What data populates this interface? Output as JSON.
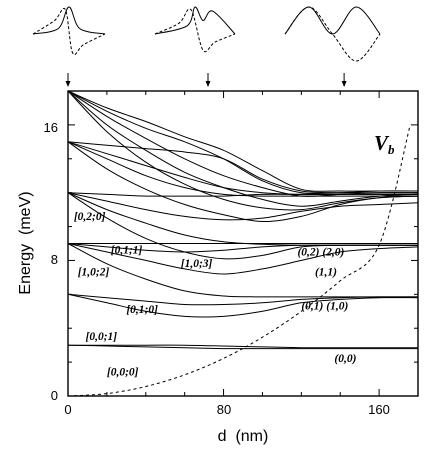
{
  "chart_data": {
    "type": "line",
    "xlabel": "d  (nm)",
    "ylabel": "Energy  (meV)",
    "xlim": [
      0,
      180
    ],
    "ylim": [
      0,
      18
    ],
    "xticks": [
      0,
      80,
      160
    ],
    "yticks": [
      0,
      8,
      16
    ],
    "xtick_labels": [
      "0",
      "80",
      "160"
    ],
    "ytick_labels": [
      "0",
      "8",
      "16"
    ],
    "grid": false,
    "legend": "none",
    "series": [
      {
        "x": [
          0,
          20,
          40,
          60,
          80,
          100,
          120,
          140,
          160,
          180
        ],
        "values": [
          3.0,
          2.95,
          2.9,
          2.85,
          2.8,
          2.8,
          2.8,
          2.8,
          2.8,
          2.8
        ]
      },
      {
        "x": [
          0,
          20,
          40,
          60,
          80,
          100,
          120,
          140,
          160,
          180
        ],
        "values": [
          3.0,
          3.0,
          3.0,
          3.0,
          2.95,
          2.9,
          2.85,
          2.85,
          2.85,
          2.85
        ]
      },
      {
        "x": [
          0,
          20,
          40,
          60,
          80,
          100,
          120,
          140,
          160,
          180
        ],
        "values": [
          6.0,
          5.5,
          5.0,
          4.7,
          4.7,
          5.0,
          5.5,
          5.7,
          5.8,
          5.8
        ]
      },
      {
        "x": [
          0,
          20,
          40,
          60,
          80,
          100,
          120,
          140,
          160,
          180
        ],
        "values": [
          6.0,
          5.8,
          5.6,
          5.4,
          5.4,
          5.5,
          5.7,
          5.8,
          5.85,
          5.85
        ]
      },
      {
        "x": [
          0,
          20,
          40,
          60,
          80,
          100,
          120,
          140,
          160,
          180
        ],
        "values": [
          9.0,
          7.8,
          6.9,
          6.2,
          5.9,
          5.85,
          5.85,
          5.85,
          5.85,
          5.85
        ]
      },
      {
        "x": [
          0,
          20,
          40,
          60,
          80,
          100,
          120,
          140,
          160,
          180
        ],
        "values": [
          9.0,
          8.5,
          8.0,
          7.5,
          7.2,
          7.5,
          8.0,
          8.5,
          8.7,
          8.8
        ]
      },
      {
        "x": [
          0,
          20,
          40,
          60,
          80,
          100,
          120,
          140,
          160,
          180
        ],
        "values": [
          9.0,
          8.8,
          8.6,
          8.5,
          8.6,
          8.8,
          8.9,
          8.9,
          8.9,
          8.9
        ]
      },
      {
        "x": [
          0,
          20,
          40,
          60,
          80,
          100,
          120,
          140,
          160,
          180
        ],
        "values": [
          9.0,
          9.0,
          9.0,
          9.0,
          9.0,
          9.0,
          9.0,
          9.0,
          9.0,
          9.0
        ]
      },
      {
        "x": [
          0,
          20,
          40,
          60,
          80,
          100,
          120,
          140,
          160,
          180
        ],
        "values": [
          12.0,
          11.0,
          10.2,
          9.5,
          9.1,
          8.95,
          8.9,
          8.9,
          8.9,
          8.9
        ]
      },
      {
        "x": [
          0,
          20,
          40,
          60,
          80,
          100,
          120,
          140,
          160,
          180
        ],
        "values": [
          12.0,
          10.5,
          9.3,
          8.5,
          8.1,
          8.3,
          8.8,
          8.9,
          8.9,
          8.9
        ]
      },
      {
        "x": [
          0,
          20,
          40,
          60,
          80,
          100,
          120,
          140,
          160,
          180
        ],
        "values": [
          12.0,
          11.5,
          11.0,
          10.6,
          10.4,
          10.5,
          10.9,
          11.2,
          11.3,
          11.4
        ]
      },
      {
        "x": [
          0,
          20,
          40,
          60,
          80,
          100,
          120,
          140,
          160,
          180
        ],
        "values": [
          12.0,
          11.9,
          11.8,
          11.8,
          11.8,
          11.9,
          11.9,
          11.9,
          11.9,
          11.9
        ]
      },
      {
        "x": [
          0,
          20,
          40,
          60,
          80,
          100,
          120,
          140,
          160,
          180
        ],
        "values": [
          15.0,
          13.4,
          12.2,
          11.3,
          10.7,
          10.3,
          10.6,
          11.3,
          11.7,
          11.8
        ]
      },
      {
        "x": [
          0,
          20,
          40,
          60,
          80,
          100,
          120,
          140,
          160,
          180
        ],
        "values": [
          15.0,
          14.0,
          13.0,
          12.3,
          11.9,
          11.8,
          11.8,
          11.8,
          11.8,
          11.8
        ]
      },
      {
        "x": [
          0,
          20,
          40,
          60,
          80,
          100,
          120,
          140,
          160,
          180
        ],
        "values": [
          15.0,
          14.3,
          13.6,
          12.9,
          12.3,
          12.0,
          11.9,
          11.9,
          11.9,
          11.9
        ]
      },
      {
        "x": [
          0,
          20,
          40,
          60,
          80,
          100,
          120,
          140,
          160,
          180
        ],
        "values": [
          15.0,
          14.8,
          14.6,
          14.4,
          14.0,
          12.8,
          12.1,
          12.0,
          12.0,
          12.0
        ]
      },
      {
        "x": [
          0,
          20,
          40,
          60,
          80,
          100,
          120,
          140,
          160,
          180
        ],
        "values": [
          18.0,
          15.6,
          13.8,
          12.5,
          11.6,
          11.1,
          11.0,
          11.4,
          11.7,
          11.8
        ]
      },
      {
        "x": [
          0,
          20,
          40,
          60,
          80,
          100,
          120,
          140,
          160,
          180
        ],
        "values": [
          18.0,
          16.0,
          14.5,
          13.2,
          12.3,
          11.6,
          11.2,
          11.5,
          11.8,
          11.9
        ]
      },
      {
        "x": [
          0,
          20,
          40,
          60,
          80,
          100,
          120,
          140,
          160,
          180
        ],
        "values": [
          18.0,
          16.5,
          15.2,
          14.0,
          13.0,
          12.3,
          11.8,
          11.9,
          12.0,
          12.0
        ]
      },
      {
        "x": [
          0,
          20,
          40,
          60,
          80,
          100,
          120,
          140,
          160,
          180
        ],
        "values": [
          18.0,
          16.8,
          15.8,
          15.0,
          14.0,
          12.7,
          12.0,
          12.0,
          12.1,
          12.1
        ]
      },
      {
        "x": [
          0,
          20,
          40,
          60,
          80,
          100,
          120,
          140,
          160,
          180
        ],
        "values": [
          18.0,
          17.0,
          16.2,
          15.3,
          14.5,
          13.3,
          12.2,
          12.1,
          12.1,
          12.1
        ]
      }
    ],
    "potential": {
      "name": "V_b",
      "style": "dashed",
      "x": [
        0,
        20,
        40,
        60,
        80,
        100,
        120,
        140,
        160,
        176
      ],
      "values": [
        0,
        0.14,
        0.56,
        1.25,
        2.22,
        3.47,
        5.0,
        6.8,
        8.9,
        16.0
      ]
    },
    "annotations": [
      {
        "text": "[0,2;0]",
        "x": 3,
        "y": 10.4
      },
      {
        "text": "[0,1;1]",
        "x": 22,
        "y": 8.4
      },
      {
        "text": "[1,0;2]",
        "x": 5,
        "y": 7.1
      },
      {
        "text": "[1,0;3]",
        "x": 58,
        "y": 7.6
      },
      {
        "text": "[0,1;0]",
        "x": 30,
        "y": 4.9
      },
      {
        "text": "[0,0;1]",
        "x": 9,
        "y": 3.3
      },
      {
        "text": "[0,0;0]",
        "x": 20,
        "y": 1.2
      },
      {
        "text": "(0,2) (2,0)",
        "x": 118,
        "y": 8.3
      },
      {
        "text": "(1,1)",
        "x": 127,
        "y": 7.1
      },
      {
        "text": "(0,1) (1,0)",
        "x": 120,
        "y": 5.1
      },
      {
        "text": "(0,0)",
        "x": 137,
        "y": 2.0
      }
    ],
    "vb_label": "V",
    "vb_subscript": "b",
    "markers_x": [
      0,
      72,
      142
    ],
    "insets": [
      {
        "solid": [
          [
            0,
            0
          ],
          [
            0.35,
            0.2
          ],
          [
            0.5,
            1.0
          ],
          [
            0.65,
            0.2
          ],
          [
            1,
            0
          ]
        ],
        "dashed": [
          [
            0,
            0
          ],
          [
            0.3,
            0.5
          ],
          [
            0.45,
            0.9
          ],
          [
            0.55,
            -0.7
          ],
          [
            0.7,
            -0.4
          ],
          [
            1,
            0
          ]
        ]
      },
      {
        "solid": [
          [
            0,
            0
          ],
          [
            0.4,
            0.3
          ],
          [
            0.5,
            1.0
          ],
          [
            0.6,
            0.5
          ],
          [
            0.72,
            0.85
          ],
          [
            1,
            0
          ]
        ],
        "dashed": [
          [
            0,
            0
          ],
          [
            0.3,
            0.4
          ],
          [
            0.45,
            0.9
          ],
          [
            0.6,
            -0.6
          ],
          [
            0.75,
            -0.3
          ],
          [
            1,
            0
          ]
        ]
      },
      {
        "solid": [
          [
            0,
            0
          ],
          [
            0.25,
            1.0
          ],
          [
            0.5,
            0.0
          ],
          [
            0.75,
            1.0
          ],
          [
            1,
            0
          ]
        ],
        "dashed": [
          [
            0,
            0
          ],
          [
            0.25,
            1.0
          ],
          [
            0.5,
            0.0
          ],
          [
            0.75,
            -1.0
          ],
          [
            1,
            0
          ]
        ]
      }
    ]
  }
}
